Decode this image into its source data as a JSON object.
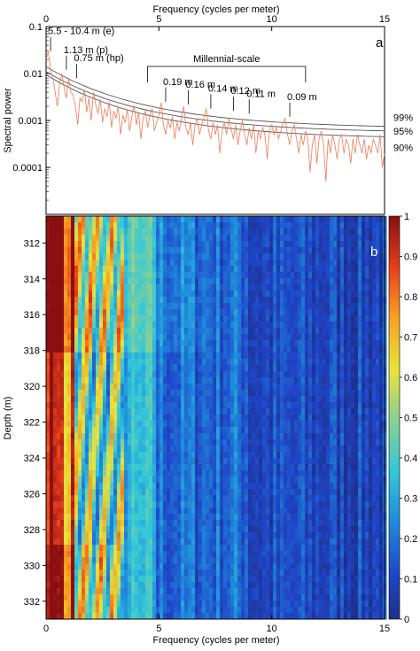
{
  "colors": {
    "spectrum": "#ee7a55",
    "confidence": "#555555",
    "axis": "#000000"
  },
  "chart_data": [
    {
      "type": "line",
      "panel_label": "a",
      "xlabel": "Frequency (cycles per meter)",
      "ylabel": "Spectral power",
      "xlim": [
        0,
        15
      ],
      "ylim": [
        1e-05,
        0.1
      ],
      "yscale": "log",
      "x_ticks": [
        "0",
        "5",
        "10",
        "15"
      ],
      "y_ticks": [
        "0.1",
        "0.01",
        "0.001",
        "0.0001"
      ],
      "series": [
        {
          "name": "",
          "x": [
            0.0,
            0.1,
            0.2,
            0.3,
            0.4,
            0.5,
            0.6,
            0.7,
            0.8,
            0.9,
            1.0,
            1.1,
            1.2,
            1.3,
            1.4,
            1.5,
            1.6,
            1.7,
            1.8,
            1.9,
            2.0,
            2.1,
            2.2,
            2.3,
            2.4,
            2.5,
            2.6,
            2.7,
            2.8,
            2.9,
            3.0,
            3.1,
            3.2,
            3.3,
            3.4,
            3.5,
            3.6,
            3.7,
            3.8,
            3.9,
            4.0,
            4.1,
            4.2,
            4.3,
            4.4,
            4.5,
            4.6,
            4.7,
            4.8,
            4.9,
            5.0,
            5.1,
            5.2,
            5.3,
            5.4,
            5.5,
            5.6,
            5.7,
            5.8,
            5.9,
            6.0,
            6.1,
            6.2,
            6.3,
            6.4,
            6.5,
            6.6,
            6.7,
            6.8,
            6.9,
            7.0,
            7.1,
            7.2,
            7.3,
            7.4,
            7.5,
            7.6,
            7.7,
            7.8,
            7.9,
            8.0,
            8.1,
            8.2,
            8.3,
            8.4,
            8.5,
            8.6,
            8.7,
            8.8,
            8.9,
            9.0,
            9.1,
            9.2,
            9.3,
            9.4,
            9.5,
            9.6,
            9.7,
            9.8,
            9.9,
            10.0,
            10.1,
            10.2,
            10.3,
            10.4,
            10.5,
            10.6,
            10.7,
            10.8,
            10.9,
            11.0,
            11.1,
            11.2,
            11.3,
            11.4,
            11.5,
            11.6,
            11.7,
            11.8,
            11.9,
            12.0,
            12.1,
            12.2,
            12.3,
            12.4,
            12.5,
            12.6,
            12.7,
            12.8,
            12.9,
            13.0,
            13.1,
            13.2,
            13.3,
            13.4,
            13.5,
            13.6,
            13.7,
            13.8,
            13.9,
            14.0,
            14.1,
            14.2,
            14.3,
            14.4,
            14.5,
            14.6,
            14.7,
            14.8,
            14.9,
            15.0
          ],
          "y": [
            0.02,
            0.03,
            0.012,
            0.008,
            0.004,
            0.002,
            0.006,
            0.01,
            0.005,
            0.003,
            0.008,
            0.004,
            0.0035,
            0.002,
            0.0008,
            0.003,
            0.0025,
            0.0045,
            0.0015,
            0.003,
            0.001,
            0.004,
            0.0022,
            0.0014,
            0.0028,
            0.0009,
            0.0018,
            0.0012,
            0.0025,
            0.0007,
            0.0016,
            0.0011,
            0.002,
            0.0005,
            0.0013,
            0.0009,
            0.0017,
            0.0006,
            0.0012,
            0.0021,
            0.0008,
            0.0015,
            0.0004,
            0.0011,
            0.0016,
            0.0007,
            0.0012,
            0.0018,
            0.0006,
            0.0009,
            0.0013,
            0.0024,
            0.0008,
            0.0005,
            0.001,
            0.0007,
            0.0012,
            0.0004,
            0.0009,
            0.0006,
            0.0011,
            0.002,
            0.0007,
            0.0005,
            0.0009,
            0.0003,
            0.0008,
            0.0011,
            0.0005,
            0.0008,
            0.0012,
            0.0018,
            0.0006,
            0.0004,
            0.0009,
            0.0005,
            0.0008,
            0.0002,
            0.0006,
            0.0009,
            0.0005,
            0.0011,
            0.0007,
            0.0004,
            0.0008,
            0.0003,
            0.0006,
            0.001,
            0.0005,
            0.0003,
            0.0007,
            0.0004,
            0.0008,
            0.0002,
            0.0006,
            0.0004,
            0.0007,
            0.0005,
            0.00015,
            0.0006,
            0.0008,
            0.0005,
            0.0007,
            0.0004,
            0.0006,
            0.0009,
            0.0011,
            0.0005,
            0.0003,
            0.0006,
            0.0008,
            0.0004,
            0.0002,
            0.0005,
            0.0003,
            0.0006,
            0.0004,
            8e-05,
            0.0003,
            0.0005,
            0.00012,
            0.0004,
            0.0006,
            0.0003,
            5e-05,
            0.0004,
            0.0002,
            0.0005,
            0.0003,
            0.00015,
            0.0004,
            0.0005,
            0.0002,
            0.0004,
            0.0003,
            0.00012,
            0.0004,
            0.0002,
            0.0005,
            0.0003,
            0.0002,
            0.0004,
            0.00015,
            0.0003,
            0.0002,
            0.0004,
            0.0003,
            0.0002,
            0.0005,
            0.0001,
            0.0002
          ]
        }
      ],
      "confidence_levels": [
        {
          "label": "99%",
          "y_at_0": 0.014,
          "y_at_15": 0.00075
        },
        {
          "label": "95%",
          "y_at_0": 0.011,
          "y_at_15": 0.0006
        },
        {
          "label": "90%",
          "y_at_0": 0.0095,
          "y_at_15": 0.00045
        }
      ],
      "annotations": [
        {
          "text": "5.5 - 10.4 m (e)",
          "x": 0.2,
          "y": 0.03
        },
        {
          "text": "1.13 m (p)",
          "x": 0.9,
          "y": 0.012
        },
        {
          "text": "0.75 m (hp)",
          "x": 1.35,
          "y": 0.008
        },
        {
          "text": "0.19 m",
          "x": 5.3,
          "y": 0.0025
        },
        {
          "text": "0.16 m",
          "x": 6.3,
          "y": 0.0022
        },
        {
          "text": "0.14 m",
          "x": 7.3,
          "y": 0.0018
        },
        {
          "text": "0.12 m",
          "x": 8.3,
          "y": 0.0016
        },
        {
          "text": "0.11 m",
          "x": 9.0,
          "y": 0.0014
        },
        {
          "text": "0.09 m",
          "x": 10.8,
          "y": 0.0012
        }
      ],
      "bracket": {
        "text": "Millennial-scale",
        "x_range": [
          4.5,
          11.5
        ]
      }
    },
    {
      "type": "heatmap",
      "panel_label": "b",
      "xlabel": "Frequency (cycles per meter)",
      "ylabel": "Depth (m)",
      "xlim": [
        0,
        15
      ],
      "ylim": [
        310.5,
        333
      ],
      "x_ticks": [
        "0",
        "5",
        "10",
        "15"
      ],
      "y_ticks": [
        "312",
        "314",
        "316",
        "318",
        "320",
        "322",
        "324",
        "326",
        "328",
        "330",
        "332"
      ],
      "colorbar": {
        "range": [
          0,
          1
        ],
        "ticks": [
          "0",
          "0.1",
          "0.2",
          "0.3",
          "0.4",
          "0.5",
          "0.6",
          "0.7",
          "0.8",
          "0.9",
          "1"
        ],
        "colormap": "jet"
      }
    }
  ]
}
